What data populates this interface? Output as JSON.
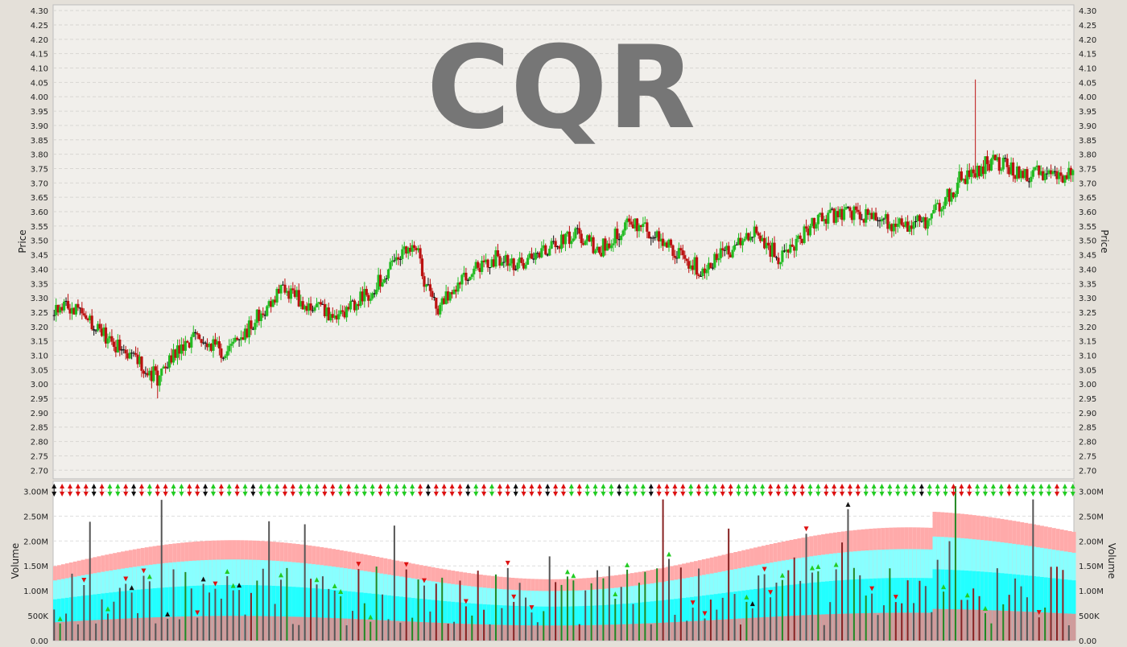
{
  "chart_data": [
    {
      "type": "ohlc",
      "title": "CQR",
      "ylabel": "Price",
      "ylim": [
        2.67,
        4.32
      ],
      "yticks": [
        "2.70",
        "2.75",
        "2.80",
        "2.85",
        "2.90",
        "2.95",
        "3.00",
        "3.05",
        "3.10",
        "3.15",
        "3.20",
        "3.25",
        "3.30",
        "3.35",
        "3.40",
        "3.45",
        "3.50",
        "3.55",
        "3.60",
        "3.65",
        "3.70",
        "3.75",
        "3.80",
        "3.85",
        "3.90",
        "3.95",
        "4.00",
        "4.05",
        "4.10",
        "4.15",
        "4.20",
        "4.25",
        "4.30"
      ],
      "grid": true,
      "anchors": [
        [
          0,
          3.26
        ],
        [
          12,
          3.27
        ],
        [
          30,
          3.14
        ],
        [
          42,
          3.08
        ],
        [
          52,
          3.02
        ],
        [
          62,
          3.12
        ],
        [
          75,
          3.17
        ],
        [
          86,
          3.1
        ],
        [
          98,
          3.2
        ],
        [
          115,
          3.34
        ],
        [
          130,
          3.26
        ],
        [
          145,
          3.24
        ],
        [
          160,
          3.33
        ],
        [
          175,
          3.45
        ],
        [
          182,
          3.47
        ],
        [
          187,
          3.34
        ],
        [
          193,
          3.25
        ],
        [
          205,
          3.38
        ],
        [
          222,
          3.44
        ],
        [
          235,
          3.42
        ],
        [
          248,
          3.47
        ],
        [
          262,
          3.52
        ],
        [
          275,
          3.47
        ],
        [
          290,
          3.57
        ],
        [
          300,
          3.52
        ],
        [
          313,
          3.46
        ],
        [
          325,
          3.4
        ],
        [
          340,
          3.47
        ],
        [
          352,
          3.52
        ],
        [
          365,
          3.44
        ],
        [
          380,
          3.55
        ],
        [
          395,
          3.6
        ],
        [
          410,
          3.58
        ],
        [
          425,
          3.55
        ],
        [
          440,
          3.57
        ],
        [
          457,
          3.72
        ],
        [
          472,
          3.78
        ],
        [
          485,
          3.73
        ],
        [
          500,
          3.74
        ],
        [
          512,
          3.72
        ]
      ],
      "color_legend": {
        "up": "#22bb22",
        "down": "#bb1111",
        "flat": "#111111"
      }
    },
    {
      "type": "bar",
      "ylabel": "Volume",
      "ylim": [
        0,
        3200000
      ],
      "yticks": [
        "0.00",
        "500K",
        "1.00M",
        "1.50M",
        "2.00M",
        "2.50M",
        "3.00M"
      ],
      "max_volume": 3100000,
      "band_colors": {
        "upper": "#ffaaaa",
        "middle": "#88ffff",
        "core": "#22ffff",
        "base": "#d09b9b",
        "bar": "#555555",
        "bar_up": "#228822",
        "bar_down": "#882222"
      },
      "marker_colors": {
        "up": "#22cc22",
        "down": "#dd1111",
        "flat": "#111111"
      }
    }
  ]
}
